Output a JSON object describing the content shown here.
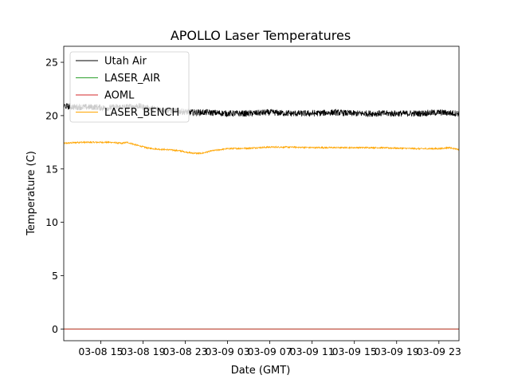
{
  "chart_data": {
    "type": "line",
    "title": "APOLLO Laser Temperatures",
    "xlabel": "Date (GMT)",
    "ylabel": "Temperature (C)",
    "xlim": [
      11.5,
      48.9
    ],
    "ylim": [
      -1.1,
      26.5
    ],
    "x_unit": "hours since 03-08 00:00 GMT",
    "x_ticks": [
      {
        "x": 15,
        "label": "03-08 15"
      },
      {
        "x": 19,
        "label": "03-08 19"
      },
      {
        "x": 23,
        "label": "03-08 23"
      },
      {
        "x": 27,
        "label": "03-09 03"
      },
      {
        "x": 31,
        "label": "03-09 07"
      },
      {
        "x": 35,
        "label": "03-09 11"
      },
      {
        "x": 39,
        "label": "03-09 15"
      },
      {
        "x": 43,
        "label": "03-09 19"
      },
      {
        "x": 47,
        "label": "03-09 23"
      }
    ],
    "y_ticks": [
      0,
      5,
      10,
      15,
      20,
      25
    ],
    "grid": false,
    "legend": {
      "location": "top-left"
    },
    "series": [
      {
        "name": "Utah Air",
        "color": "#000000",
        "noise": 0.3,
        "x": [
          11.5,
          12.5,
          13.5,
          14.5,
          15.5,
          16.5,
          17.5,
          18.5,
          19.5,
          20.5,
          21.5,
          22.5,
          23.5,
          25,
          27,
          29,
          31,
          33,
          35,
          37,
          39,
          41,
          43,
          45,
          47,
          48.9
        ],
        "values": [
          20.9,
          20.8,
          20.8,
          20.8,
          20.7,
          20.8,
          20.8,
          20.9,
          20.7,
          20.6,
          20.5,
          20.4,
          20.3,
          20.3,
          20.2,
          20.2,
          20.3,
          20.2,
          20.2,
          20.3,
          20.2,
          20.2,
          20.2,
          20.2,
          20.3,
          20.2
        ]
      },
      {
        "name": "LASER_AIR",
        "color": "#2ca02c",
        "noise": 0,
        "x": [
          11.5,
          48.9
        ],
        "values": [
          0,
          0
        ]
      },
      {
        "name": "AOML",
        "color": "#d62728",
        "noise": 0,
        "x": [
          11.5,
          48.9
        ],
        "values": [
          0,
          0
        ]
      },
      {
        "name": "LASER_BENCH",
        "color": "#ffa500",
        "noise": 0.07,
        "x": [
          11.5,
          13,
          14,
          15,
          16,
          17,
          17.5,
          18.5,
          19.5,
          20.5,
          21.5,
          22.5,
          23.5,
          24.5,
          25.5,
          27,
          29,
          31,
          33,
          35,
          37,
          39,
          41,
          43,
          45,
          47,
          48,
          48.9
        ],
        "values": [
          17.4,
          17.5,
          17.5,
          17.5,
          17.5,
          17.4,
          17.5,
          17.2,
          16.95,
          16.85,
          16.8,
          16.7,
          16.5,
          16.45,
          16.7,
          16.9,
          16.95,
          17.05,
          17.05,
          17.0,
          17.0,
          17.0,
          17.0,
          16.95,
          16.9,
          16.9,
          17.0,
          16.8
        ]
      }
    ]
  }
}
